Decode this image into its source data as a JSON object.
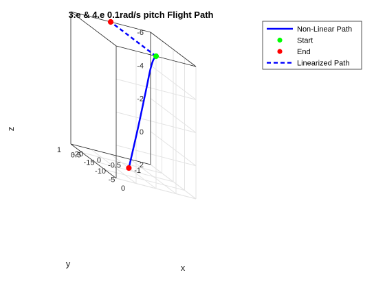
{
  "chart_data": {
    "type": "line3d",
    "title": "3.e & 4.e 0.1rad/s pitch Flight Path",
    "xlabel": "x",
    "ylabel": "y",
    "zlabel": "z",
    "xlim": [
      -20,
      0
    ],
    "ylim": [
      -1,
      1
    ],
    "zlim": [
      -6,
      2
    ],
    "z_reversed": true,
    "grid": true,
    "box": true,
    "x_ticks": [
      -20,
      -15,
      -10,
      -5,
      0
    ],
    "y_ticks": [
      -1,
      -0.5,
      0,
      0.5,
      1
    ],
    "z_ticks": [
      -6,
      -4,
      -2,
      0,
      2
    ],
    "x_tick_labels": [
      "-20",
      "-15",
      "-10",
      "-5",
      "0"
    ],
    "y_tick_labels": [
      "-1",
      "-0.5",
      "0",
      "0.5",
      "1"
    ],
    "z_tick_labels": [
      "-6",
      "-4",
      "-2",
      "0",
      "2"
    ],
    "legend_position": "outside-top-right",
    "series": [
      {
        "name": "Non-Linear Path",
        "style": "solid",
        "color": "#0000ff",
        "x": [
          0,
          -1,
          -2.5,
          -4,
          -6,
          -8,
          -10,
          -12
        ],
        "y": [
          0,
          0,
          0,
          0,
          0,
          0,
          0,
          0
        ],
        "z": [
          -6,
          -5.8,
          -5.0,
          -3.8,
          -2.3,
          -0.8,
          0.6,
          2.0
        ]
      },
      {
        "name": "Start",
        "style": "marker",
        "color": "#00ff00",
        "x": [
          0
        ],
        "y": [
          0
        ],
        "z": [
          -6
        ]
      },
      {
        "name": "End",
        "style": "marker",
        "color": "#ff0000",
        "x": [
          -12,
          -20
        ],
        "y": [
          0,
          0
        ],
        "z": [
          2,
          -6
        ]
      },
      {
        "name": "Linearized Path",
        "style": "dashed",
        "color": "#0000ff",
        "x": [
          0,
          -20
        ],
        "y": [
          0,
          0
        ],
        "z": [
          -6,
          -6
        ]
      }
    ]
  }
}
